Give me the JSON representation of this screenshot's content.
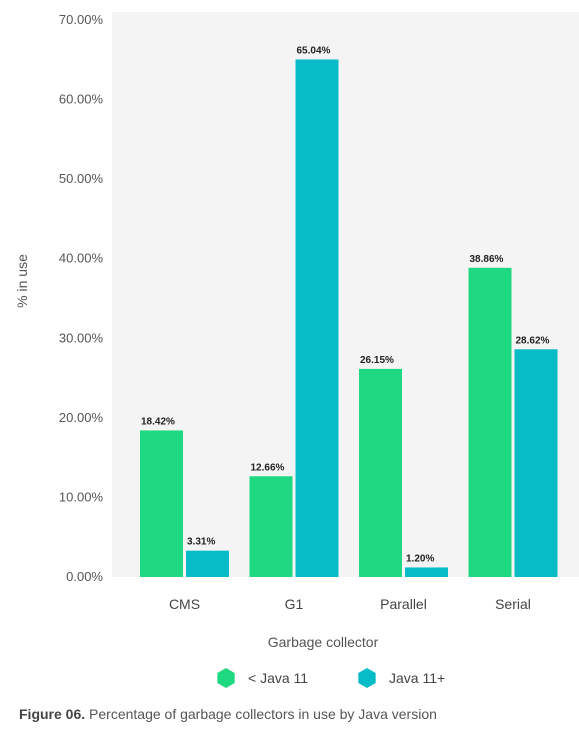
{
  "chart_data": {
    "type": "bar",
    "categories": [
      "CMS",
      "G1",
      "Parallel",
      "Serial"
    ],
    "series": [
      {
        "name": "< Java 11",
        "color": "#1ED882",
        "values": [
          18.42,
          12.66,
          26.15,
          38.86
        ],
        "labels": [
          "18.42%",
          "12.66%",
          "26.15%",
          "38.86%"
        ]
      },
      {
        "name": "Java 11+",
        "color": "#07BCC6",
        "values": [
          3.31,
          65.04,
          1.2,
          28.62
        ],
        "labels": [
          "3.31%",
          "65.04%",
          "1.20%",
          "28.62%"
        ]
      }
    ],
    "xlabel": "Garbage collector",
    "ylabel": "% in use",
    "ylim": [
      0,
      70
    ],
    "yticks": [
      0,
      10,
      20,
      30,
      40,
      50,
      60,
      70
    ],
    "ytick_labels": [
      "0.00%",
      "10.00%",
      "20.00%",
      "30.00%",
      "40.00%",
      "50.00%",
      "60.00%",
      "70.00%"
    ],
    "grid": false,
    "plot_background": "#F4F4F4",
    "legend_placement": "bottom",
    "legend_marker": "hexagon"
  },
  "caption": {
    "figure_label": "Figure 06.",
    "text": " Percentage of garbage collectors in use by Java version"
  }
}
